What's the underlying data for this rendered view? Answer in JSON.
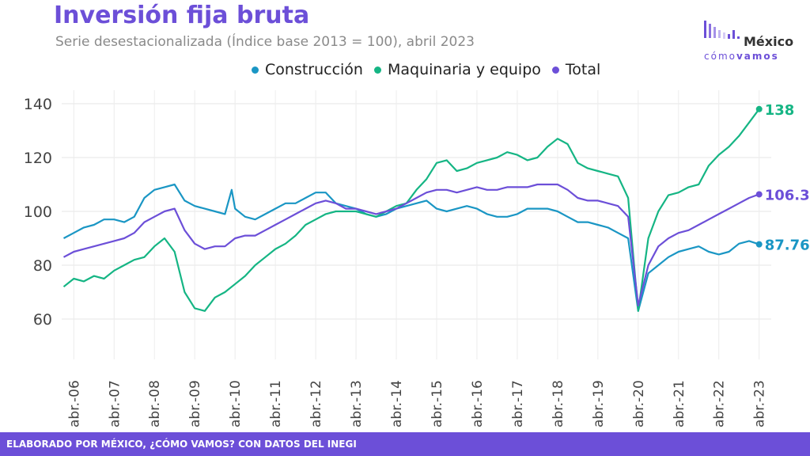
{
  "header": {
    "title": "Inversión fija bruta",
    "subtitle": "Serie desestacionalizada (Índice base 2013 = 100), abril 2023"
  },
  "logo": {
    "main": "México",
    "sub_light": "cómo",
    "sub_bold": "vamos"
  },
  "footer": {
    "text": "ELABORADO POR MÉXICO, ¿CÓMO VAMOS? CON DATOS DEL INEGI"
  },
  "colors": {
    "construccion": "#1a96c4",
    "maquinaria": "#15b584",
    "total": "#6c4fd8"
  },
  "chart_data": {
    "type": "line",
    "title": "Inversión fija bruta",
    "subtitle": "Serie desestacionalizada (Índice base 2013 = 100), abril 2023",
    "ylim": [
      45,
      145
    ],
    "yticks": [
      60,
      80,
      100,
      120,
      140
    ],
    "xticks": [
      "abr.-06",
      "abr.-07",
      "abr.-08",
      "abr.-09",
      "abr.-10",
      "abr.-11",
      "abr.-12",
      "abr.-13",
      "abr.-14",
      "abr.-15",
      "abr.-16",
      "abr.-17",
      "abr.-18",
      "abr.-19",
      "abr.-20",
      "abr.-21",
      "abr.-22",
      "abr.-23"
    ],
    "grid": true,
    "legend_position": "top",
    "series": [
      {
        "name": "Construcción",
        "key": "construccion",
        "end_label": "87.76",
        "points": [
          [
            "2006-01",
            90
          ],
          [
            "2006-04",
            92
          ],
          [
            "2006-07",
            94
          ],
          [
            "2006-10",
            95
          ],
          [
            "2007-01",
            97
          ],
          [
            "2007-04",
            97
          ],
          [
            "2007-07",
            96
          ],
          [
            "2007-10",
            98
          ],
          [
            "2008-01",
            105
          ],
          [
            "2008-04",
            108
          ],
          [
            "2008-07",
            109
          ],
          [
            "2008-10",
            110
          ],
          [
            "2009-01",
            104
          ],
          [
            "2009-04",
            102
          ],
          [
            "2009-07",
            101
          ],
          [
            "2009-10",
            100
          ],
          [
            "2010-01",
            99
          ],
          [
            "2010-03",
            108
          ],
          [
            "2010-04",
            101
          ],
          [
            "2010-07",
            98
          ],
          [
            "2010-10",
            97
          ],
          [
            "2011-01",
            99
          ],
          [
            "2011-04",
            101
          ],
          [
            "2011-07",
            103
          ],
          [
            "2011-10",
            103
          ],
          [
            "2012-01",
            105
          ],
          [
            "2012-04",
            107
          ],
          [
            "2012-07",
            107
          ],
          [
            "2012-10",
            103
          ],
          [
            "2013-01",
            102
          ],
          [
            "2013-04",
            101
          ],
          [
            "2013-07",
            99
          ],
          [
            "2013-10",
            98
          ],
          [
            "2014-01",
            99
          ],
          [
            "2014-04",
            101
          ],
          [
            "2014-07",
            102
          ],
          [
            "2014-10",
            103
          ],
          [
            "2015-01",
            104
          ],
          [
            "2015-04",
            101
          ],
          [
            "2015-07",
            100
          ],
          [
            "2015-10",
            101
          ],
          [
            "2016-01",
            102
          ],
          [
            "2016-04",
            101
          ],
          [
            "2016-07",
            99
          ],
          [
            "2016-10",
            98
          ],
          [
            "2017-01",
            98
          ],
          [
            "2017-04",
            99
          ],
          [
            "2017-07",
            101
          ],
          [
            "2017-10",
            101
          ],
          [
            "2018-01",
            101
          ],
          [
            "2018-04",
            100
          ],
          [
            "2018-07",
            98
          ],
          [
            "2018-10",
            96
          ],
          [
            "2019-01",
            96
          ],
          [
            "2019-04",
            95
          ],
          [
            "2019-07",
            94
          ],
          [
            "2019-10",
            92
          ],
          [
            "2020-01",
            90
          ],
          [
            "2020-04",
            63
          ],
          [
            "2020-07",
            77
          ],
          [
            "2020-10",
            80
          ],
          [
            "2021-01",
            83
          ],
          [
            "2021-04",
            85
          ],
          [
            "2021-07",
            86
          ],
          [
            "2021-10",
            87
          ],
          [
            "2022-01",
            85
          ],
          [
            "2022-04",
            84
          ],
          [
            "2022-07",
            85
          ],
          [
            "2022-10",
            88
          ],
          [
            "2023-01",
            89
          ],
          [
            "2023-04",
            87.76
          ]
        ]
      },
      {
        "name": "Maquinaria y equipo",
        "key": "maquinaria",
        "end_label": "138",
        "points": [
          [
            "2006-01",
            72
          ],
          [
            "2006-04",
            75
          ],
          [
            "2006-07",
            74
          ],
          [
            "2006-10",
            76
          ],
          [
            "2007-01",
            75
          ],
          [
            "2007-04",
            78
          ],
          [
            "2007-07",
            80
          ],
          [
            "2007-10",
            82
          ],
          [
            "2008-01",
            83
          ],
          [
            "2008-04",
            87
          ],
          [
            "2008-07",
            90
          ],
          [
            "2008-10",
            85
          ],
          [
            "2009-01",
            70
          ],
          [
            "2009-04",
            64
          ],
          [
            "2009-07",
            63
          ],
          [
            "2009-10",
            68
          ],
          [
            "2010-01",
            70
          ],
          [
            "2010-04",
            73
          ],
          [
            "2010-07",
            76
          ],
          [
            "2010-10",
            80
          ],
          [
            "2011-01",
            83
          ],
          [
            "2011-04",
            86
          ],
          [
            "2011-07",
            88
          ],
          [
            "2011-10",
            91
          ],
          [
            "2012-01",
            95
          ],
          [
            "2012-04",
            97
          ],
          [
            "2012-07",
            99
          ],
          [
            "2012-10",
            100
          ],
          [
            "2013-01",
            100
          ],
          [
            "2013-04",
            100
          ],
          [
            "2013-07",
            99
          ],
          [
            "2013-10",
            98
          ],
          [
            "2014-01",
            100
          ],
          [
            "2014-04",
            102
          ],
          [
            "2014-07",
            103
          ],
          [
            "2014-10",
            108
          ],
          [
            "2015-01",
            112
          ],
          [
            "2015-04",
            118
          ],
          [
            "2015-07",
            119
          ],
          [
            "2015-10",
            115
          ],
          [
            "2016-01",
            116
          ],
          [
            "2016-04",
            118
          ],
          [
            "2016-07",
            119
          ],
          [
            "2016-10",
            120
          ],
          [
            "2017-01",
            122
          ],
          [
            "2017-04",
            121
          ],
          [
            "2017-07",
            119
          ],
          [
            "2017-10",
            120
          ],
          [
            "2018-01",
            124
          ],
          [
            "2018-04",
            127
          ],
          [
            "2018-07",
            125
          ],
          [
            "2018-10",
            118
          ],
          [
            "2019-01",
            116
          ],
          [
            "2019-04",
            115
          ],
          [
            "2019-07",
            114
          ],
          [
            "2019-10",
            113
          ],
          [
            "2020-01",
            105
          ],
          [
            "2020-04",
            63
          ],
          [
            "2020-07",
            90
          ],
          [
            "2020-10",
            100
          ],
          [
            "2021-01",
            106
          ],
          [
            "2021-04",
            107
          ],
          [
            "2021-07",
            109
          ],
          [
            "2021-10",
            110
          ],
          [
            "2022-01",
            117
          ],
          [
            "2022-04",
            121
          ],
          [
            "2022-07",
            124
          ],
          [
            "2022-10",
            128
          ],
          [
            "2023-01",
            133
          ],
          [
            "2023-04",
            138
          ]
        ]
      },
      {
        "name": "Total",
        "key": "total",
        "end_label": "106.34",
        "points": [
          [
            "2006-01",
            83
          ],
          [
            "2006-04",
            85
          ],
          [
            "2006-07",
            86
          ],
          [
            "2006-10",
            87
          ],
          [
            "2007-01",
            88
          ],
          [
            "2007-04",
            89
          ],
          [
            "2007-07",
            90
          ],
          [
            "2007-10",
            92
          ],
          [
            "2008-01",
            96
          ],
          [
            "2008-04",
            98
          ],
          [
            "2008-07",
            100
          ],
          [
            "2008-10",
            101
          ],
          [
            "2009-01",
            93
          ],
          [
            "2009-04",
            88
          ],
          [
            "2009-07",
            86
          ],
          [
            "2009-10",
            87
          ],
          [
            "2010-01",
            87
          ],
          [
            "2010-04",
            90
          ],
          [
            "2010-07",
            91
          ],
          [
            "2010-10",
            91
          ],
          [
            "2011-01",
            93
          ],
          [
            "2011-04",
            95
          ],
          [
            "2011-07",
            97
          ],
          [
            "2011-10",
            99
          ],
          [
            "2012-01",
            101
          ],
          [
            "2012-04",
            103
          ],
          [
            "2012-07",
            104
          ],
          [
            "2012-10",
            103
          ],
          [
            "2013-01",
            101
          ],
          [
            "2013-04",
            101
          ],
          [
            "2013-07",
            100
          ],
          [
            "2013-10",
            99
          ],
          [
            "2014-01",
            100
          ],
          [
            "2014-04",
            101
          ],
          [
            "2014-07",
            103
          ],
          [
            "2014-10",
            105
          ],
          [
            "2015-01",
            107
          ],
          [
            "2015-04",
            108
          ],
          [
            "2015-07",
            108
          ],
          [
            "2015-10",
            107
          ],
          [
            "2016-01",
            108
          ],
          [
            "2016-04",
            109
          ],
          [
            "2016-07",
            108
          ],
          [
            "2016-10",
            108
          ],
          [
            "2017-01",
            109
          ],
          [
            "2017-04",
            109
          ],
          [
            "2017-07",
            109
          ],
          [
            "2017-10",
            110
          ],
          [
            "2018-01",
            110
          ],
          [
            "2018-04",
            110
          ],
          [
            "2018-07",
            108
          ],
          [
            "2018-10",
            105
          ],
          [
            "2019-01",
            104
          ],
          [
            "2019-04",
            104
          ],
          [
            "2019-07",
            103
          ],
          [
            "2019-10",
            102
          ],
          [
            "2020-01",
            98
          ],
          [
            "2020-04",
            65
          ],
          [
            "2020-07",
            80
          ],
          [
            "2020-10",
            87
          ],
          [
            "2021-01",
            90
          ],
          [
            "2021-04",
            92
          ],
          [
            "2021-07",
            93
          ],
          [
            "2021-10",
            95
          ],
          [
            "2022-01",
            97
          ],
          [
            "2022-04",
            99
          ],
          [
            "2022-07",
            101
          ],
          [
            "2022-10",
            103
          ],
          [
            "2023-01",
            105
          ],
          [
            "2023-04",
            106.34
          ]
        ]
      }
    ]
  }
}
